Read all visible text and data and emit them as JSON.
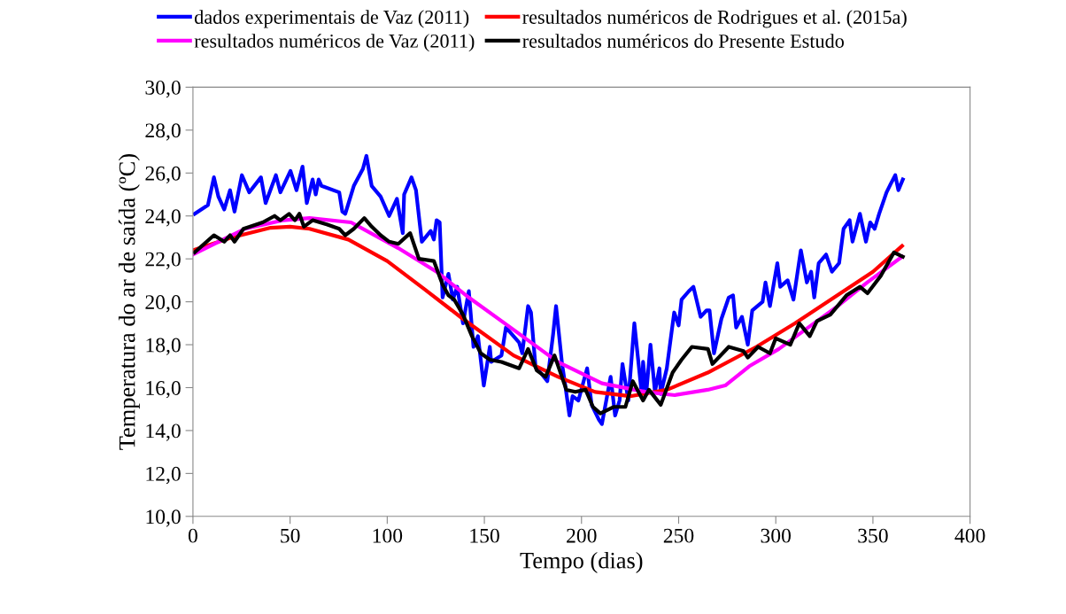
{
  "chart_data": {
    "type": "line",
    "xlabel": "Tempo (dias)",
    "ylabel": "Temperatura do ar de saída (ºC)",
    "xlim": [
      0,
      400
    ],
    "xticks": [
      0,
      50,
      100,
      150,
      200,
      250,
      300,
      350,
      400
    ],
    "ylim": [
      10,
      30
    ],
    "yticks": [
      {
        "value": 10,
        "label": "10,0"
      },
      {
        "value": 12,
        "label": "12,0"
      },
      {
        "value": 14,
        "label": "14,0"
      },
      {
        "value": 16,
        "label": "16,0"
      },
      {
        "value": 18,
        "label": "18,0"
      },
      {
        "value": 20,
        "label": "20,0"
      },
      {
        "value": 22,
        "label": "22,0"
      },
      {
        "value": 24,
        "label": "24,0"
      },
      {
        "value": 26,
        "label": "26,0"
      },
      {
        "value": 28,
        "label": "28,0"
      },
      {
        "value": 30,
        "label": "30,0"
      }
    ],
    "grid": false,
    "legend": "top",
    "marker": "none",
    "line_style": "solid",
    "series": [
      {
        "name": "dados experimentais de Vaz (2011)",
        "color": "#0000ff",
        "x": [
          0.9,
          7.7,
          10.8,
          13.1,
          16.1,
          19.1,
          21.4,
          25.2,
          29,
          35,
          37.4,
          42.7,
          45,
          50.2,
          53.3,
          56.4,
          58.6,
          61.6,
          63.2,
          64.7,
          66.2,
          75.3,
          76.9,
          78.4,
          82.8,
          87.5,
          89.3,
          92,
          96.6,
          101,
          105,
          108,
          108.7,
          112.5,
          114.8,
          117.8,
          122.4,
          124,
          125.4,
          127,
          128.5,
          131.5,
          133.8,
          136,
          139,
          142,
          144.4,
          146.7,
          149.7,
          152.8,
          153.5,
          158.8,
          161.1,
          167.9,
          169.5,
          172.5,
          174,
          176.3,
          182.4,
          185.4,
          186.9,
          190,
          191.5,
          193.8,
          195.4,
          198.4,
          202.9,
          205.2,
          209,
          210.5,
          215,
          217.3,
          219.6,
          221.1,
          224.1,
          227.2,
          231,
          231.7,
          233.3,
          235.5,
          237.8,
          240.1,
          240.8,
          243.9,
          247.7,
          250,
          251.5,
          255.3,
          257.6,
          261.3,
          264.4,
          265.9,
          268.2,
          272,
          275.8,
          278,
          279.6,
          282.6,
          285.6,
          287.9,
          293.2,
          294.7,
          297,
          300.8,
          302.3,
          306.1,
          309.1,
          312.9,
          316,
          318.2,
          319.8,
          322.1,
          325.9,
          328.9,
          332.6,
          334.9,
          338,
          339.5,
          343.3,
          346.4,
          348.6,
          350.9,
          353.2,
          357,
          359.2,
          361.5,
          363.1,
          365.4
        ],
        "values": [
          24.1,
          24.5,
          25.8,
          24.9,
          24.3,
          25.2,
          24.2,
          25.9,
          25.1,
          25.8,
          24.6,
          25.9,
          25.1,
          26.1,
          25.2,
          26.3,
          24.6,
          25.7,
          25,
          25.7,
          25.4,
          25.1,
          24.2,
          24.1,
          25.4,
          26.2,
          26.8,
          25.4,
          24.9,
          24,
          24.8,
          23.2,
          25,
          25.8,
          25.2,
          22.8,
          23.3,
          22.9,
          23.8,
          23.7,
          20.2,
          21.3,
          20.1,
          20.7,
          19,
          20.5,
          17.9,
          18.4,
          16.1,
          17.9,
          17.2,
          17.5,
          18.8,
          18.1,
          17.6,
          19.8,
          19.5,
          17,
          16.3,
          18.5,
          19.8,
          17.1,
          16.2,
          14.7,
          15.6,
          15.4,
          16.9,
          15.2,
          14.5,
          14.3,
          16.5,
          14.7,
          15.4,
          17.1,
          15.4,
          19,
          15.7,
          17.2,
          15.7,
          18,
          15.8,
          16.9,
          15.7,
          16.9,
          19.5,
          18.9,
          20.1,
          20.5,
          20.7,
          19.3,
          19.6,
          19.6,
          17.6,
          19.2,
          20.2,
          20.3,
          18.8,
          19.3,
          18,
          19.6,
          20,
          20.9,
          19.8,
          21.8,
          20.7,
          21,
          20.1,
          22.4,
          20.9,
          21.4,
          20.2,
          21.8,
          22.2,
          21.4,
          21.8,
          23.4,
          23.8,
          22.8,
          24.1,
          22.8,
          23.7,
          23.4,
          24.1,
          25.1,
          25.5,
          25.9,
          25.2,
          25.7
        ]
      },
      {
        "name": "resultados numéricos de Rodrigues et al. (2015a)",
        "color": "#ff0000",
        "x": [
          0,
          20,
          40,
          50,
          60,
          80,
          100,
          119,
          139,
          165,
          188,
          207,
          225,
          244,
          265,
          290,
          310,
          330,
          350,
          365
        ],
        "values": [
          22.4,
          23.0,
          23.45,
          23.5,
          23.4,
          22.9,
          21.9,
          20.6,
          19.2,
          17.5,
          16.5,
          15.8,
          15.6,
          15.9,
          16.7,
          17.9,
          19.0,
          20.2,
          21.4,
          22.6
        ]
      },
      {
        "name": "resultados numéricos de Vaz (2011)",
        "color": "#ff00ff",
        "x": [
          0,
          26.7,
          46.5,
          60,
          81.4,
          105.7,
          125.4,
          142,
          165,
          187.7,
          210.5,
          233,
          248,
          265,
          274,
          286.4,
          301.6,
          316.7,
          331.9,
          347,
          365
        ],
        "values": [
          22.2,
          23.4,
          23.8,
          23.9,
          23.7,
          22.5,
          21.4,
          20.2,
          18.7,
          17.2,
          16.2,
          15.8,
          15.65,
          15.9,
          16.1,
          17.0,
          17.8,
          18.8,
          19.8,
          20.9,
          22.1
        ]
      },
      {
        "name": "resultados numéricos do Presente Estudo",
        "color": "#000000",
        "x": [
          0.9,
          10.8,
          16.1,
          19.1,
          21.4,
          26,
          35.9,
          42,
          45,
          49.5,
          52.5,
          54.8,
          57.1,
          61.6,
          69.2,
          75.3,
          78.4,
          82.8,
          88.2,
          92,
          96.6,
          101,
          105.7,
          111.8,
          116.3,
          124,
          128.5,
          131.5,
          134.5,
          139,
          143.6,
          148.2,
          152.8,
          158.8,
          167.9,
          172.5,
          177,
          181.5,
          186.1,
          192.2,
          196.8,
          202.1,
          205.9,
          209.7,
          216.5,
          222.6,
          226.4,
          231.7,
          234.7,
          240.8,
          246.9,
          251.5,
          256.8,
          265.1,
          267.4,
          275.8,
          283.4,
          285.6,
          290.9,
          297,
          300,
          307.5,
          312.1,
          317.5,
          321.2,
          328.1,
          336.4,
          343.3,
          347.2,
          354,
          360.8,
          365.4
        ],
        "values": [
          22.3,
          23.1,
          22.8,
          23.1,
          22.8,
          23.4,
          23.7,
          24,
          23.8,
          24.1,
          23.8,
          24.1,
          23.5,
          23.8,
          23.6,
          23.4,
          23.1,
          23.4,
          23.9,
          23.5,
          23.1,
          22.8,
          22.7,
          23.2,
          22,
          21.9,
          20.8,
          20.3,
          20.1,
          19.4,
          18.4,
          17.6,
          17.3,
          17.2,
          16.9,
          17.8,
          16.8,
          16.5,
          17.5,
          15.9,
          15.8,
          15.9,
          15.1,
          14.8,
          15.1,
          15.1,
          16.3,
          15.4,
          15.9,
          15.2,
          16.7,
          17.3,
          17.9,
          17.8,
          17.1,
          17.9,
          17.7,
          17.4,
          17.9,
          17.6,
          18.3,
          18,
          19,
          18.4,
          19.1,
          19.4,
          20.3,
          20.7,
          20.4,
          21.2,
          22.3,
          22.1
        ]
      }
    ]
  }
}
